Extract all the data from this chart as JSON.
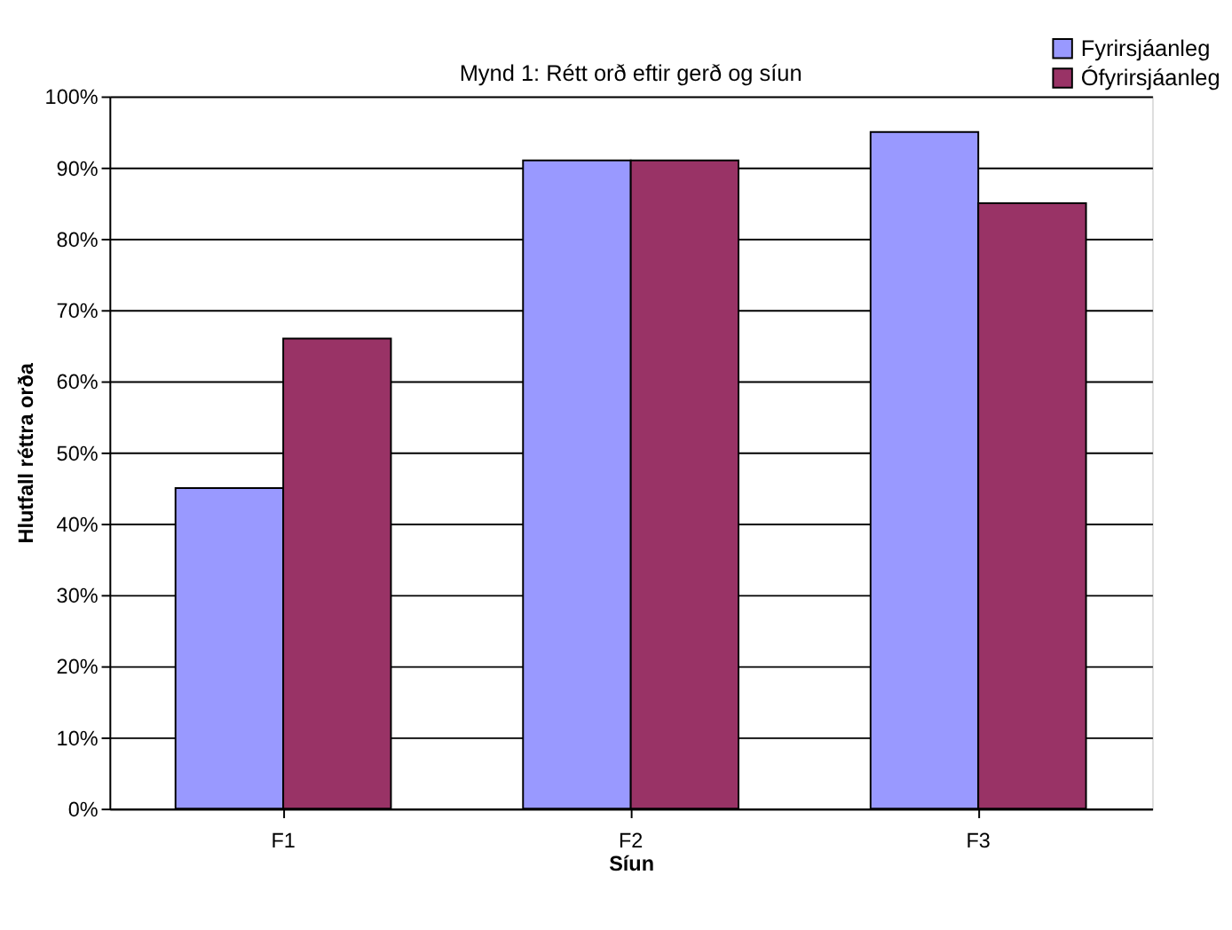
{
  "chart_data": {
    "type": "bar",
    "title": "Mynd 1: Rétt orð eftir gerð og síun",
    "xlabel": "Síun",
    "ylabel": "Hlutfall réttra orða",
    "categories": [
      "F1",
      "F2",
      "F3"
    ],
    "series": [
      {
        "name": "Fyrirsjáanleg",
        "color": "#9999ff",
        "values": [
          45,
          91,
          95
        ]
      },
      {
        "name": "Ófyrirsjáanleg",
        "color": "#993366",
        "values": [
          66,
          91,
          85
        ]
      }
    ],
    "ylim": [
      0,
      100
    ],
    "yticks": [
      {
        "value": 0,
        "label": "0%"
      },
      {
        "value": 10,
        "label": "10%"
      },
      {
        "value": 20,
        "label": "20%"
      },
      {
        "value": 30,
        "label": "30%"
      },
      {
        "value": 40,
        "label": "40%"
      },
      {
        "value": 50,
        "label": "50%"
      },
      {
        "value": 60,
        "label": "60%"
      },
      {
        "value": 70,
        "label": "70%"
      },
      {
        "value": 80,
        "label": "80%"
      },
      {
        "value": 90,
        "label": "90%"
      },
      {
        "value": 100,
        "label": "100%"
      }
    ],
    "grid": "y",
    "legend": "top right"
  }
}
